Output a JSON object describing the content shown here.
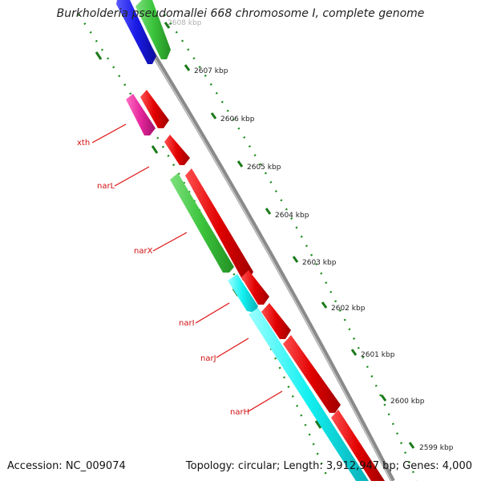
{
  "title": "Burkholderia pseudomallei 668 chromosome I, complete genome",
  "footer": {
    "accession": "Accession: NC_009074",
    "summary": "Topology: circular; Length: 3,912,947 bp; Genes: 4,000"
  },
  "ticks": [
    "2608 kbp",
    "2607 kbp",
    "2606 kbp",
    "2605 kbp",
    "2604 kbp",
    "2603 kbp",
    "2602 kbp",
    "2601 kbp",
    "2600 kbp",
    "2599 kbp"
  ],
  "gene_labels": [
    "xth",
    "narL",
    "narX",
    "narI",
    "narJ",
    "narH"
  ],
  "colors": {
    "backbone": "#8a8a8a",
    "red": "#e10000",
    "green": "#3cc43c",
    "blue": "#1a1ae6",
    "magenta": "#e6269c",
    "cyan": "#13f0f0",
    "dots": "#1a8a1a",
    "label": "#d01010"
  }
}
